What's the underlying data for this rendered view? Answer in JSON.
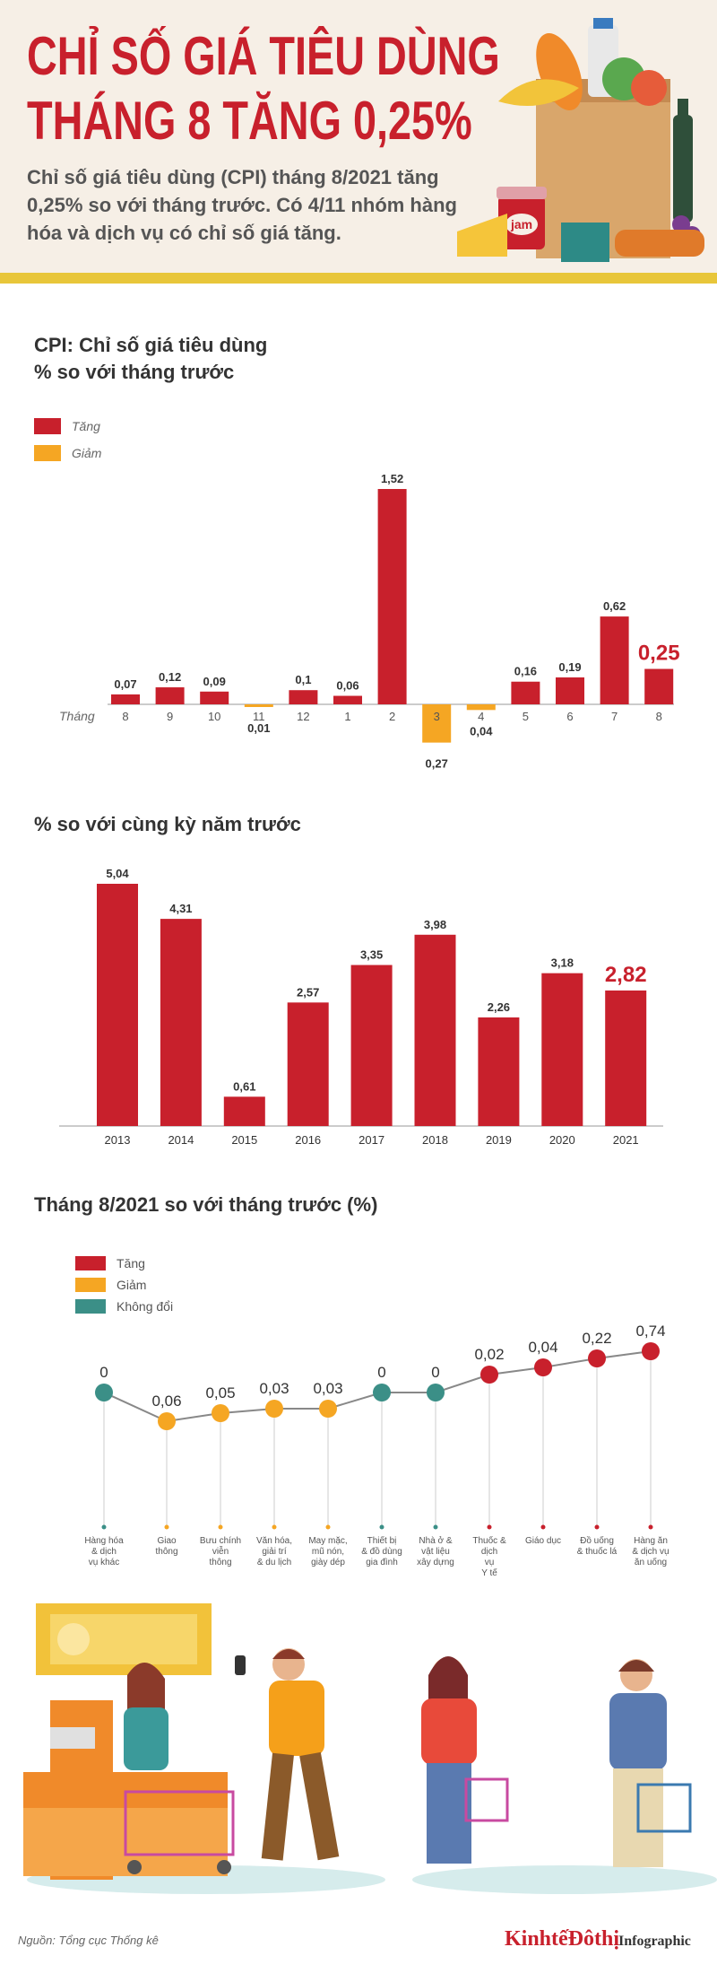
{
  "header": {
    "title_line1": "CHỈ SỐ GIÁ TIÊU DÙNG",
    "title_line2": "THÁNG 8 TĂNG 0,25%",
    "subtitle": "Chỉ số giá tiêu dùng (CPI) tháng 8/2021 tăng 0,25% so với tháng trước. Có 4/11 nhóm hàng hóa và dịch vụ có chỉ số giá tăng."
  },
  "colors": {
    "increase": "#c8202c",
    "decrease": "#f5a623",
    "unchanged": "#3b8f87",
    "accent_yellow": "#e8c63a"
  },
  "chart_data": [
    {
      "type": "bar",
      "title": "CPI: Chỉ số giá tiêu dùng",
      "subtitle": "% so với tháng trước",
      "xlabel": "Tháng",
      "legend": [
        {
          "name": "Tăng",
          "color": "#c8202c"
        },
        {
          "name": "Giảm",
          "color": "#f5a623"
        }
      ],
      "categories": [
        "8",
        "9",
        "10",
        "11",
        "12",
        "1",
        "2",
        "3",
        "4",
        "5",
        "6",
        "7",
        "8"
      ],
      "values": [
        0.07,
        0.12,
        0.09,
        -0.01,
        0.1,
        0.06,
        1.52,
        -0.27,
        -0.04,
        0.16,
        0.19,
        0.62,
        0.25
      ],
      "value_labels": [
        "0,07",
        "0,12",
        "0,09",
        "0,01",
        "0,1",
        "0,06",
        "1,52",
        "0,27",
        "0,04",
        "0,16",
        "0,19",
        "0,62",
        "0,25"
      ],
      "highlight_last": true
    },
    {
      "type": "bar",
      "title": "% so với cùng kỳ năm trước",
      "categories": [
        "2013",
        "2014",
        "2015",
        "2016",
        "2017",
        "2018",
        "2019",
        "2020",
        "2021"
      ],
      "values": [
        5.04,
        4.31,
        0.61,
        2.57,
        3.35,
        3.98,
        2.26,
        3.18,
        2.82
      ],
      "value_labels": [
        "5,04",
        "4,31",
        "0,61",
        "2,57",
        "3,35",
        "3,98",
        "2,26",
        "3,18",
        "2,82"
      ],
      "highlight_last": true
    },
    {
      "type": "line",
      "title": "Tháng 8/2021 so với tháng trước (%)",
      "legend": [
        {
          "name": "Tăng",
          "color": "#c8202c"
        },
        {
          "name": "Giảm",
          "color": "#f5a623"
        },
        {
          "name": "Không đổi",
          "color": "#3b8f87"
        }
      ],
      "categories": [
        [
          "Hàng hóa",
          "& dịch",
          "vụ khác"
        ],
        [
          "Giao",
          "thông"
        ],
        [
          "Bưu chính",
          "viễn",
          "thông"
        ],
        [
          "Văn hóa,",
          "giải trí",
          "& du lịch"
        ],
        [
          "May mặc,",
          "mũ nón,",
          "giày dép"
        ],
        [
          "Thiết bị",
          "& đồ dùng",
          "gia đình"
        ],
        [
          "Nhà ở &",
          "vật liệu",
          "xây dựng"
        ],
        [
          "Thuốc &",
          "dịch",
          "vụ",
          "Y tế"
        ],
        [
          "Giáo dục"
        ],
        [
          "Đồ uống",
          "& thuốc lá"
        ],
        [
          "Hàng ăn",
          "& dịch vụ",
          "ăn uống"
        ]
      ],
      "values": [
        0,
        -0.06,
        -0.05,
        -0.03,
        -0.03,
        0,
        0,
        0.02,
        0.04,
        0.22,
        0.74
      ],
      "value_labels": [
        "0",
        "0,06",
        "0,05",
        "0,03",
        "0,03",
        "0",
        "0",
        "0,02",
        "0,04",
        "0,22",
        "0,74"
      ],
      "status": [
        "same",
        "down",
        "down",
        "down",
        "down",
        "same",
        "same",
        "up",
        "up",
        "up",
        "up"
      ]
    }
  ],
  "footer": {
    "source": "Nguồn: Tổng cục Thống kê",
    "brand": "KinhtếĐôthị",
    "brand_suffix": "Infographic"
  }
}
